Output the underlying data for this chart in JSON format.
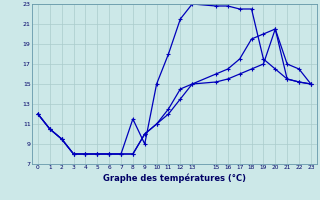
{
  "xlabel": "Graphe des températures (°C)",
  "bg_color": "#cce8e8",
  "line_color": "#0000bb",
  "grid_color": "#aacccc",
  "xlim": [
    -0.5,
    23.5
  ],
  "ylim": [
    7,
    23
  ],
  "yticks": [
    7,
    9,
    11,
    13,
    15,
    17,
    19,
    21,
    23
  ],
  "xticks": [
    0,
    1,
    2,
    3,
    4,
    5,
    6,
    7,
    8,
    9,
    10,
    11,
    12,
    13,
    15,
    16,
    17,
    18,
    19,
    20,
    21,
    22,
    23
  ],
  "line1_x": [
    0,
    1,
    2,
    3,
    4,
    5,
    6,
    7,
    8,
    9,
    10,
    11,
    12,
    13,
    15,
    16,
    17,
    18,
    19,
    20,
    21,
    22,
    23
  ],
  "line1_y": [
    12.0,
    10.5,
    9.5,
    8.0,
    8.0,
    8.0,
    8.0,
    8.0,
    8.0,
    10.0,
    11.0,
    12.0,
    13.5,
    15.0,
    16.0,
    16.5,
    17.5,
    19.5,
    20.0,
    20.5,
    15.5,
    15.2,
    15.0
  ],
  "line2_x": [
    0,
    1,
    2,
    3,
    4,
    5,
    6,
    7,
    8,
    9,
    10,
    11,
    12,
    13,
    15,
    16,
    17,
    18,
    19,
    20,
    21,
    22,
    23
  ],
  "line2_y": [
    12.0,
    10.5,
    9.5,
    8.0,
    8.0,
    8.0,
    8.0,
    8.0,
    11.5,
    9.0,
    15.0,
    18.0,
    21.5,
    23.0,
    22.8,
    22.8,
    22.5,
    22.5,
    17.5,
    16.5,
    15.5,
    15.2,
    15.0
  ],
  "line3_x": [
    0,
    1,
    2,
    3,
    4,
    5,
    6,
    7,
    8,
    9,
    10,
    11,
    12,
    13,
    15,
    16,
    17,
    18,
    19,
    20,
    21,
    22,
    23
  ],
  "line3_y": [
    12.0,
    10.5,
    9.5,
    8.0,
    8.0,
    8.0,
    8.0,
    8.0,
    8.0,
    10.0,
    11.0,
    12.5,
    14.5,
    15.0,
    15.2,
    15.5,
    16.0,
    16.5,
    17.0,
    20.5,
    17.0,
    16.5,
    15.0
  ]
}
